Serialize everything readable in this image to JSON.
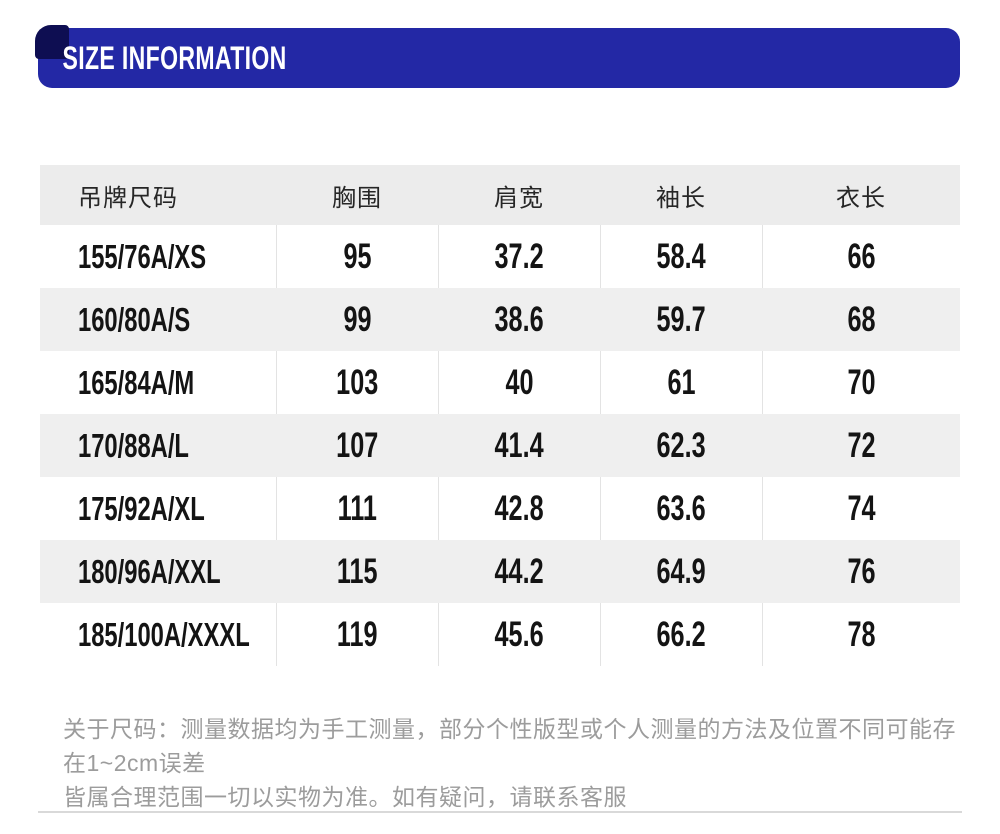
{
  "banner": {
    "title": "SIZE INFORMATION",
    "bg_color": "#2328a5",
    "corner_accent_color": "#0e0e52"
  },
  "table": {
    "headers": [
      "吊牌尺码",
      "胸围",
      "肩宽",
      "袖长",
      "衣长"
    ],
    "rows": [
      [
        "155/76A/XS",
        "95",
        "37.2",
        "58.4",
        "66"
      ],
      [
        "160/80A/S",
        "99",
        "38.6",
        "59.7",
        "68"
      ],
      [
        "165/84A/M",
        "103",
        "40",
        "61",
        "70"
      ],
      [
        "170/88A/L",
        "107",
        "41.4",
        "62.3",
        "72"
      ],
      [
        "175/92A/XL",
        "111",
        "42.8",
        "63.6",
        "74"
      ],
      [
        "180/96A/XXL",
        "115",
        "44.2",
        "64.9",
        "76"
      ],
      [
        "185/100A/XXXL",
        "119",
        "45.6",
        "66.2",
        "78"
      ]
    ],
    "header_bg": "#ececec",
    "alt_row_bg": "#efefef"
  },
  "note": {
    "line1": "关于尺码：测量数据均为手工测量，部分个性版型或个人测量的方法及位置不同可能存在1~2cm误差",
    "line2": "皆属合理范围一切以实物为准。如有疑问，请联系客服"
  }
}
